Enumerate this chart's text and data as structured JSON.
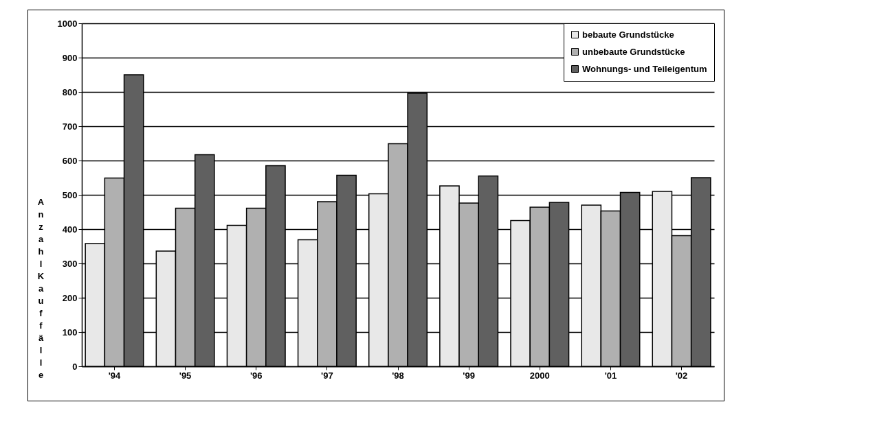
{
  "chart_data": {
    "type": "bar",
    "ylabel": "Anzahl Kauffälle",
    "categories": [
      "'94",
      "'95",
      "'96",
      "'97",
      "'98",
      "'99",
      "2000",
      "'01",
      "'02"
    ],
    "series": [
      {
        "name": "bebaute Grundstücke",
        "color": "#e8e8e8",
        "values": [
          358,
          336,
          411,
          369,
          503,
          526,
          425,
          470,
          510
        ]
      },
      {
        "name": "unbebaute Grundstücke",
        "color": "#b0b0b0",
        "values": [
          549,
          461,
          461,
          480,
          649,
          476,
          464,
          453,
          381
        ]
      },
      {
        "name": "Wohnungs- und Teileigentum",
        "color": "#606060",
        "values": [
          850,
          617,
          585,
          557,
          796,
          555,
          478,
          507,
          550
        ]
      }
    ],
    "ylim": [
      0,
      1000
    ],
    "yticks": [
      0,
      100,
      200,
      300,
      400,
      500,
      600,
      700,
      800,
      900,
      1000
    ],
    "grid": "y",
    "legend": "top right"
  }
}
